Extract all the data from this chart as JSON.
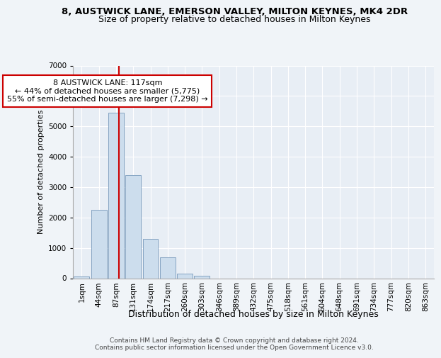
{
  "title": "8, AUSTWICK LANE, EMERSON VALLEY, MILTON KEYNES, MK4 2DR",
  "subtitle": "Size of property relative to detached houses in Milton Keynes",
  "xlabel": "Distribution of detached houses by size in Milton Keynes",
  "ylabel": "Number of detached properties",
  "footer_line1": "Contains HM Land Registry data © Crown copyright and database right 2024.",
  "footer_line2": "Contains public sector information licensed under the Open Government Licence v3.0.",
  "bar_labels": [
    "1sqm",
    "44sqm",
    "87sqm",
    "131sqm",
    "174sqm",
    "217sqm",
    "260sqm",
    "303sqm",
    "346sqm",
    "389sqm",
    "432sqm",
    "475sqm",
    "518sqm",
    "561sqm",
    "604sqm",
    "648sqm",
    "691sqm",
    "734sqm",
    "777sqm",
    "820sqm",
    "863sqm"
  ],
  "bar_values": [
    50,
    2250,
    5450,
    3400,
    1300,
    700,
    150,
    75,
    0,
    0,
    0,
    0,
    0,
    0,
    0,
    0,
    0,
    0,
    0,
    0,
    0
  ],
  "bar_color": "#ccdded",
  "bar_edge_color": "#7799bb",
  "vline_color": "#cc0000",
  "annotation_text": "8 AUSTWICK LANE: 117sqm\n← 44% of detached houses are smaller (5,775)\n55% of semi-detached houses are larger (7,298) →",
  "annotation_box_color": "#ffffff",
  "annotation_box_edge": "#cc0000",
  "ylim": [
    0,
    7000
  ],
  "yticks": [
    0,
    1000,
    2000,
    3000,
    4000,
    5000,
    6000,
    7000
  ],
  "background_color": "#f0f4f8",
  "plot_bg_color": "#e8eef5",
  "grid_color": "#ffffff",
  "title_fontsize": 9.5,
  "subtitle_fontsize": 9,
  "xlabel_fontsize": 9,
  "ylabel_fontsize": 8,
  "tick_fontsize": 7.5,
  "footer_fontsize": 6.5,
  "annotation_fontsize": 8
}
